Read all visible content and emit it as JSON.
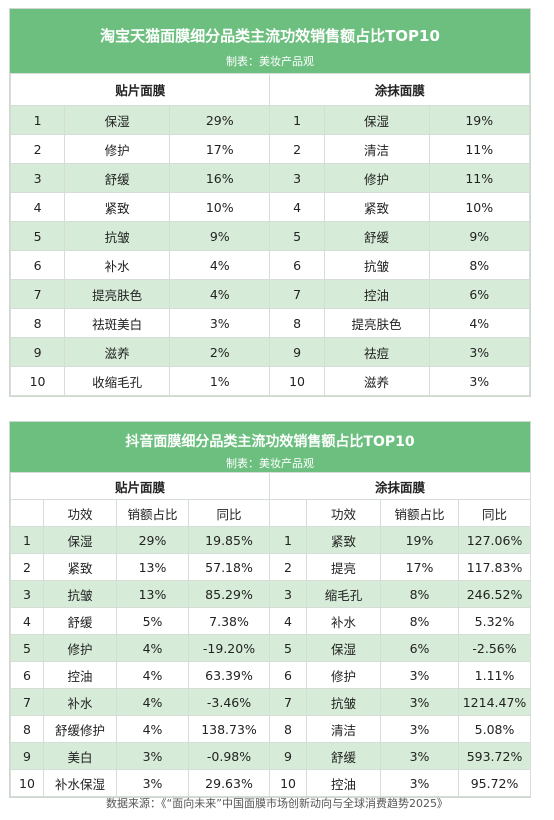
{
  "tmall": {
    "title": "淘宝天猫面膜细分品类主流功效销售额占比TOP10",
    "subtitle": "制表：美妆产品观",
    "left_header": "贴片面膜",
    "right_header": "涂抹面膜",
    "rows": [
      {
        "rank": "1",
        "l_name": "保湿",
        "l_share": "29%",
        "r_rank": "1",
        "r_name": "保湿",
        "r_share": "19%"
      },
      {
        "rank": "2",
        "l_name": "修护",
        "l_share": "17%",
        "r_rank": "2",
        "r_name": "清洁",
        "r_share": "11%"
      },
      {
        "rank": "3",
        "l_name": "舒缓",
        "l_share": "16%",
        "r_rank": "3",
        "r_name": "修护",
        "r_share": "11%"
      },
      {
        "rank": "4",
        "l_name": "紧致",
        "l_share": "10%",
        "r_rank": "4",
        "r_name": "紧致",
        "r_share": "10%"
      },
      {
        "rank": "5",
        "l_name": "抗皱",
        "l_share": "9%",
        "r_rank": "5",
        "r_name": "舒缓",
        "r_share": "9%"
      },
      {
        "rank": "6",
        "l_name": "补水",
        "l_share": "4%",
        "r_rank": "6",
        "r_name": "抗皱",
        "r_share": "8%"
      },
      {
        "rank": "7",
        "l_name": "提亮肤色",
        "l_share": "4%",
        "r_rank": "7",
        "r_name": "控油",
        "r_share": "6%"
      },
      {
        "rank": "8",
        "l_name": "祛斑美白",
        "l_share": "3%",
        "r_rank": "8",
        "r_name": "提亮肤色",
        "r_share": "4%"
      },
      {
        "rank": "9",
        "l_name": "滋养",
        "l_share": "2%",
        "r_rank": "9",
        "r_name": "祛痘",
        "r_share": "3%"
      },
      {
        "rank": "10",
        "l_name": "收缩毛孔",
        "l_share": "1%",
        "r_rank": "10",
        "r_name": "滋养",
        "r_share": "3%"
      }
    ]
  },
  "douyin": {
    "title": "抖音面膜细分品类主流功效销售额占比TOP10",
    "subtitle": "制表：美妆产品观",
    "left_header": "贴片面膜",
    "right_header": "涂抹面膜",
    "col_headers": {
      "effect": "功效",
      "share": "销额占比",
      "yoy": "同比"
    },
    "rows": [
      {
        "rank": "1",
        "l_name": "保湿",
        "l_share": "29%",
        "l_yoy": "19.85%",
        "r_rank": "1",
        "r_name": "紧致",
        "r_share": "19%",
        "r_yoy": "127.06%"
      },
      {
        "rank": "2",
        "l_name": "紧致",
        "l_share": "13%",
        "l_yoy": "57.18%",
        "r_rank": "2",
        "r_name": "提亮",
        "r_share": "17%",
        "r_yoy": "117.83%"
      },
      {
        "rank": "3",
        "l_name": "抗皱",
        "l_share": "13%",
        "l_yoy": "85.29%",
        "r_rank": "3",
        "r_name": "缩毛孔",
        "r_share": "8%",
        "r_yoy": "246.52%"
      },
      {
        "rank": "4",
        "l_name": "舒缓",
        "l_share": "5%",
        "l_yoy": "7.38%",
        "r_rank": "4",
        "r_name": "补水",
        "r_share": "8%",
        "r_yoy": "5.32%"
      },
      {
        "rank": "5",
        "l_name": "修护",
        "l_share": "4%",
        "l_yoy": "-19.20%",
        "r_rank": "5",
        "r_name": "保湿",
        "r_share": "6%",
        "r_yoy": "-2.56%"
      },
      {
        "rank": "6",
        "l_name": "控油",
        "l_share": "4%",
        "l_yoy": "63.39%",
        "r_rank": "6",
        "r_name": "修护",
        "r_share": "3%",
        "r_yoy": "1.11%"
      },
      {
        "rank": "7",
        "l_name": "补水",
        "l_share": "4%",
        "l_yoy": "-3.46%",
        "r_rank": "7",
        "r_name": "抗皱",
        "r_share": "3%",
        "r_yoy": "1214.47%"
      },
      {
        "rank": "8",
        "l_name": "舒缓修护",
        "l_share": "4%",
        "l_yoy": "138.73%",
        "r_rank": "8",
        "r_name": "清洁",
        "r_share": "3%",
        "r_yoy": "5.08%"
      },
      {
        "rank": "9",
        "l_name": "美白",
        "l_share": "3%",
        "l_yoy": "-0.98%",
        "r_rank": "9",
        "r_name": "舒缓",
        "r_share": "3%",
        "r_yoy": "593.72%"
      },
      {
        "rank": "10",
        "l_name": "补水保湿",
        "l_share": "3%",
        "l_yoy": "29.63%",
        "r_rank": "10",
        "r_name": "控油",
        "r_share": "3%",
        "r_yoy": "95.72%"
      }
    ]
  },
  "source": "数据来源：《“面向未来”中国面膜市场创新动向与全球消费趋势2025》",
  "colors": {
    "header_green": "#6cbf7f",
    "row_green": "#d7ecd8"
  }
}
